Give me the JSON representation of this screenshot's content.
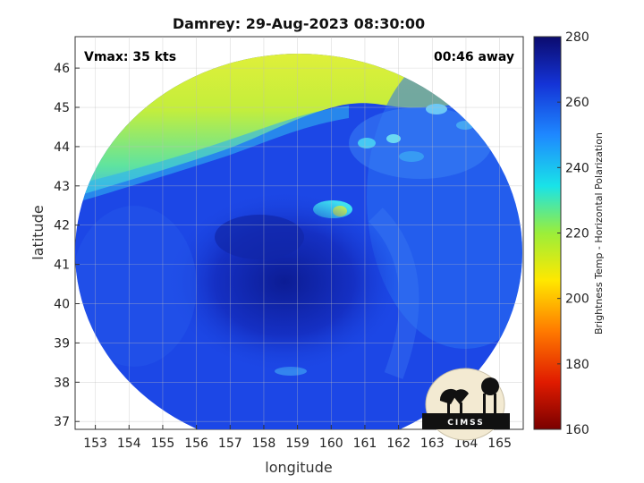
{
  "title": "Damrey: 29-Aug-2023 08:30:00",
  "annotations": {
    "vmax": "Vmax: 35 kts",
    "away": "00:46 away"
  },
  "axes": {
    "xlabel": "longitude",
    "ylabel": "latitude",
    "x_ticks": [
      "153",
      "154",
      "155",
      "156",
      "157",
      "158",
      "159",
      "160",
      "161",
      "162",
      "163",
      "164",
      "165"
    ],
    "y_ticks": [
      "46",
      "45",
      "44",
      "43",
      "42",
      "41",
      "40",
      "39",
      "38",
      "37"
    ]
  },
  "colorbar": {
    "label": "Brightness Temp - Horizontal Polarization",
    "ticks": [
      "280",
      "260",
      "240",
      "220",
      "200",
      "180",
      "160"
    ],
    "colors": [
      "#0b0b6e",
      "#1433d6",
      "#1e88ff",
      "#19e3e8",
      "#d9f028",
      "#ffe800",
      "#ff7a00",
      "#e01b00",
      "#7a0000"
    ]
  },
  "logo": {
    "text": "CIMSS"
  },
  "map": {
    "min_lon": 152.4,
    "max_lon": 165.7,
    "min_lat": 36.8,
    "max_lat": 46.8,
    "features": [
      {
        "name": "cold-air-mass",
        "color": "#c4ee3b"
      },
      {
        "name": "storm-core",
        "color": "#1228b8"
      },
      {
        "name": "convective-band",
        "color": "#2ad0f2"
      }
    ]
  }
}
